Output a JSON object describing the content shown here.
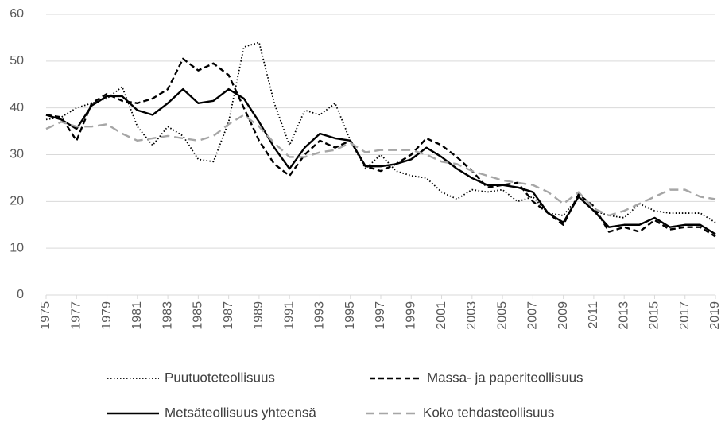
{
  "chart_data": {
    "type": "line",
    "x": [
      1975,
      1976,
      1977,
      1978,
      1979,
      1980,
      1981,
      1982,
      1983,
      1984,
      1985,
      1986,
      1987,
      1988,
      1989,
      1990,
      1991,
      1992,
      1993,
      1994,
      1995,
      1996,
      1997,
      1998,
      1999,
      2000,
      2001,
      2002,
      2003,
      2004,
      2005,
      2006,
      2007,
      2008,
      2009,
      2010,
      2011,
      2012,
      2013,
      2014,
      2015,
      2016,
      2017,
      2018,
      2019
    ],
    "xlim": [
      1975,
      2019
    ],
    "xticks": [
      1975,
      1977,
      1979,
      1981,
      1983,
      1985,
      1987,
      1989,
      1991,
      1993,
      1995,
      1997,
      1999,
      2001,
      2003,
      2005,
      2007,
      2009,
      2011,
      2013,
      2015,
      2017,
      2019
    ],
    "ylim": [
      0,
      60
    ],
    "yticks": [
      0,
      10,
      20,
      30,
      40,
      50,
      60
    ],
    "grid": true,
    "legend": "bottom",
    "series": [
      {
        "name": "Puutuoteteollisuus",
        "color": "#000000",
        "dash": "dotted",
        "values": [
          37.5,
          38,
          40,
          41,
          42,
          44.5,
          36,
          32,
          36,
          34,
          29,
          28.5,
          37,
          53,
          54,
          41,
          32,
          39.5,
          38.5,
          41,
          33,
          27,
          30,
          26.5,
          25.5,
          25,
          22,
          20.5,
          22.5,
          22,
          22.5,
          20,
          21,
          17.5,
          17,
          21,
          18,
          17,
          16.5,
          19.5,
          18,
          17.5,
          17.5,
          17.5,
          15.5
        ]
      },
      {
        "name": "Massa- ja paperiteollisuus",
        "color": "#000000",
        "dash": "dashed",
        "values": [
          38.5,
          38,
          33,
          41,
          43,
          41.5,
          41,
          42,
          44,
          50.5,
          48,
          49.5,
          47,
          40,
          33,
          28,
          25.5,
          30,
          33,
          31.5,
          33,
          27.5,
          26.5,
          28,
          30,
          33.5,
          32,
          29.5,
          26.5,
          23,
          23.5,
          24,
          20,
          17.5,
          15,
          21.5,
          19,
          13.5,
          14.5,
          13.5,
          16,
          14,
          14.5,
          14.5,
          12.5
        ]
      },
      {
        "name": "Metsäteollisuus yhteensä",
        "color": "#000000",
        "dash": "solid",
        "values": [
          38.5,
          37.5,
          35.5,
          40.5,
          42.5,
          42.5,
          39.5,
          38.5,
          41,
          44,
          41,
          41.5,
          44,
          42,
          37,
          31.5,
          27,
          31.5,
          34.5,
          33.5,
          33,
          27.5,
          27.5,
          28,
          29,
          31.5,
          29.5,
          27,
          25,
          23.5,
          23.5,
          23,
          22,
          17.5,
          15.5,
          21,
          18,
          14.5,
          15,
          15,
          16.5,
          14.5,
          15,
          15,
          13
        ]
      },
      {
        "name": "Koko tehdasteollisuus",
        "color": "#a6a6a6",
        "dash": "longdash",
        "values": [
          35.5,
          37,
          36,
          36,
          36.5,
          34.5,
          33,
          33.5,
          34,
          33.5,
          33,
          34,
          36.5,
          38.5,
          36,
          32.5,
          29.5,
          29.5,
          30.5,
          31,
          32.5,
          30.5,
          31,
          31,
          31,
          30,
          28.5,
          28,
          26.5,
          25.5,
          24.5,
          24,
          23.5,
          22,
          19.5,
          22,
          18.5,
          17,
          18,
          19.5,
          21,
          22.5,
          22.5,
          21,
          20.5
        ]
      }
    ]
  }
}
